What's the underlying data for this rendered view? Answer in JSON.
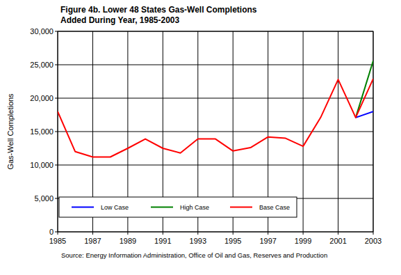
{
  "chart_data": {
    "type": "line",
    "title": "Figure 4b.  Lower 48 States Gas-Well Completions",
    "subtitle": "Added During Year, 1985-2003",
    "y_label": "Gas-Well Completions",
    "source": "Source: Energy Information Administration, Office of Oil and Gas, Reserves and Production",
    "x": [
      1985,
      1986,
      1987,
      1988,
      1989,
      1990,
      1991,
      1992,
      1993,
      1994,
      1995,
      1996,
      1997,
      1998,
      1999,
      2000,
      2001,
      2002,
      2003
    ],
    "series": [
      {
        "name": "Low Case",
        "color": "#0000ff",
        "values": [
          null,
          null,
          null,
          null,
          null,
          null,
          null,
          null,
          null,
          null,
          null,
          null,
          null,
          null,
          null,
          null,
          null,
          17100,
          18000
        ]
      },
      {
        "name": "High Case",
        "color": "#008000",
        "values": [
          null,
          null,
          null,
          null,
          null,
          null,
          null,
          null,
          null,
          null,
          null,
          null,
          null,
          null,
          null,
          null,
          null,
          17100,
          25600
        ]
      },
      {
        "name": "Base Case",
        "color": "#ff0000",
        "values": [
          18000,
          12000,
          11200,
          11200,
          12500,
          13900,
          12500,
          11800,
          13900,
          13900,
          12100,
          12600,
          14200,
          14000,
          12800,
          17100,
          22800,
          17100,
          22900
        ]
      }
    ],
    "xlim": [
      1985,
      2003
    ],
    "xticks": [
      1985,
      1987,
      1989,
      1991,
      1993,
      1995,
      1997,
      1999,
      2001,
      2003
    ],
    "ylim": [
      0,
      30000
    ],
    "yticks": [
      0,
      {
        "value": 5000,
        "label": "5,000"
      },
      {
        "value": 10000,
        "label": "10,000"
      },
      {
        "value": 15000,
        "label": "15,000"
      },
      {
        "value": 20000,
        "label": "20,000"
      },
      {
        "value": 25000,
        "label": "25,000"
      },
      {
        "value": 30000,
        "label": "30,000"
      }
    ],
    "grid": true,
    "legend": "lower left"
  }
}
